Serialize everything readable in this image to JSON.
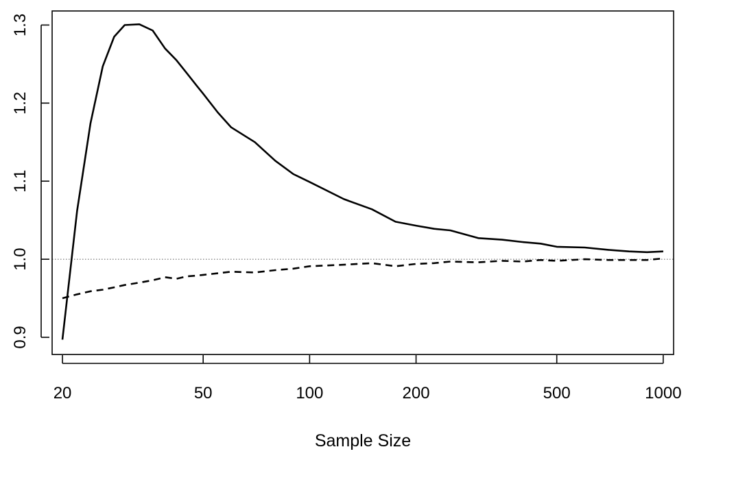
{
  "chart_data": {
    "type": "line",
    "title": "",
    "xlabel": "Sample Size",
    "ylabel": "",
    "x_scale": "log",
    "xlim": [
      18.7,
      1070
    ],
    "ylim": [
      0.878,
      1.318
    ],
    "x_ticks": [
      20,
      50,
      100,
      200,
      500,
      1000
    ],
    "x_tick_labels": [
      "20",
      "50",
      "100",
      "200",
      "500",
      "1000"
    ],
    "y_ticks": [
      0.9,
      1.0,
      1.1,
      1.2,
      1.3
    ],
    "y_tick_labels": [
      "0.9",
      "1.0",
      "1.1",
      "1.2",
      "1.3"
    ],
    "grid": false,
    "reference_line": {
      "y": 1.0,
      "style": "dotted"
    },
    "series": [
      {
        "line_style": "solid",
        "x": [
          20,
          22,
          24,
          26,
          28,
          30,
          33,
          36,
          39,
          42,
          45,
          48,
          50,
          55,
          60,
          70,
          80,
          90,
          100,
          125,
          150,
          175,
          200,
          225,
          250,
          300,
          350,
          400,
          450,
          500,
          600,
          700,
          800,
          900,
          1000
        ],
        "y": [
          0.897,
          1.062,
          1.174,
          1.247,
          1.285,
          1.3,
          1.301,
          1.293,
          1.27,
          1.255,
          1.238,
          1.222,
          1.212,
          1.188,
          1.169,
          1.15,
          1.126,
          1.109,
          1.099,
          1.077,
          1.064,
          1.048,
          1.043,
          1.039,
          1.037,
          1.027,
          1.025,
          1.022,
          1.02,
          1.016,
          1.015,
          1.012,
          1.01,
          1.009,
          1.01
        ]
      },
      {
        "line_style": "dashed",
        "x": [
          20,
          22,
          24,
          26,
          28,
          30,
          33,
          36,
          39,
          42,
          45,
          48,
          50,
          55,
          60,
          70,
          80,
          90,
          100,
          125,
          150,
          175,
          200,
          225,
          250,
          300,
          350,
          400,
          450,
          500,
          600,
          700,
          800,
          900,
          1000
        ],
        "y": [
          0.95,
          0.955,
          0.959,
          0.961,
          0.964,
          0.967,
          0.97,
          0.973,
          0.977,
          0.975,
          0.978,
          0.979,
          0.98,
          0.982,
          0.984,
          0.983,
          0.986,
          0.988,
          0.991,
          0.993,
          0.995,
          0.991,
          0.994,
          0.995,
          0.997,
          0.996,
          0.998,
          0.997,
          0.999,
          0.998,
          1.0,
          0.999,
          0.999,
          0.999,
          1.001
        ]
      }
    ]
  }
}
